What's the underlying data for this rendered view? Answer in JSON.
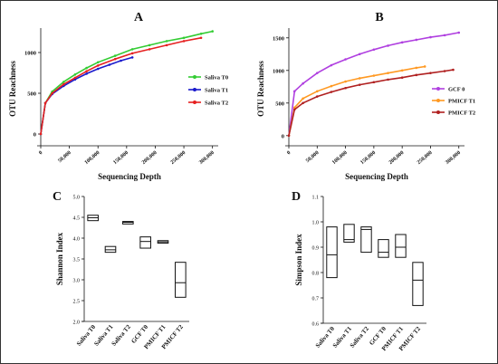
{
  "figure": {
    "panels": [
      "A",
      "B",
      "C",
      "D"
    ]
  },
  "chart_data": [
    {
      "panel": "A",
      "type": "line",
      "xlabel": "Sequencing Depth",
      "ylabel": "OTU Reachness",
      "xlim": [
        0,
        310000
      ],
      "ylim": [
        -100,
        1300
      ],
      "xticks": [
        0,
        50000,
        100000,
        150000,
        200000,
        250000,
        300000
      ],
      "xtick_labels": [
        "0",
        "50,000",
        "100,000",
        "150,000",
        "200,000",
        "250,000",
        "300,000"
      ],
      "yticks": [
        0,
        500,
        1000
      ],
      "ytick_labels": [
        "0",
        "500",
        "1000"
      ],
      "legend_position": "right",
      "series": [
        {
          "name": "Saliva T0",
          "color": "#33cc33",
          "x": [
            0,
            8000,
            20000,
            40000,
            60000,
            80000,
            100000,
            130000,
            160000,
            190000,
            220000,
            250000,
            280000,
            300000
          ],
          "y": [
            0,
            380,
            520,
            640,
            730,
            810,
            880,
            960,
            1040,
            1090,
            1140,
            1180,
            1230,
            1260
          ]
        },
        {
          "name": "Saliva T1",
          "color": "#1a1acc",
          "x": [
            0,
            8000,
            20000,
            40000,
            60000,
            80000,
            100000,
            120000,
            140000,
            160000
          ],
          "y": [
            0,
            380,
            490,
            590,
            670,
            740,
            800,
            850,
            900,
            940
          ]
        },
        {
          "name": "Saliva T2",
          "color": "#e62020",
          "x": [
            0,
            8000,
            20000,
            40000,
            60000,
            80000,
            100000,
            130000,
            160000,
            190000,
            220000,
            250000,
            280000
          ],
          "y": [
            0,
            380,
            500,
            610,
            690,
            770,
            840,
            920,
            990,
            1040,
            1090,
            1140,
            1180
          ]
        }
      ]
    },
    {
      "panel": "B",
      "type": "line",
      "xlabel": "Sequencing Depth",
      "ylabel": "OTU Reachness",
      "xlim": [
        0,
        310000
      ],
      "ylim": [
        -100,
        1650
      ],
      "xticks": [
        0,
        50000,
        100000,
        150000,
        200000,
        250000,
        300000
      ],
      "xtick_labels": [
        "0",
        "50,000",
        "100,000",
        "150,000",
        "200,000",
        "250,000",
        "300,000"
      ],
      "yticks": [
        0,
        500,
        1000,
        1500
      ],
      "ytick_labels": [
        "0",
        "500",
        "1000",
        "1500"
      ],
      "legend_position": "right",
      "series": [
        {
          "name": "GCF 0",
          "color": "#b040e0",
          "x": [
            0,
            10000,
            25000,
            50000,
            75000,
            100000,
            125000,
            150000,
            175000,
            200000,
            225000,
            250000,
            275000,
            300000
          ],
          "y": [
            0,
            680,
            800,
            960,
            1080,
            1170,
            1250,
            1320,
            1380,
            1430,
            1470,
            1510,
            1540,
            1580
          ]
        },
        {
          "name": "PMICF T1",
          "color": "#ff9922",
          "x": [
            0,
            10000,
            25000,
            50000,
            75000,
            100000,
            125000,
            150000,
            175000,
            200000,
            225000,
            240000
          ],
          "y": [
            0,
            430,
            570,
            680,
            760,
            830,
            880,
            920,
            960,
            1000,
            1040,
            1060
          ]
        },
        {
          "name": "PMICF T2",
          "color": "#b02020",
          "x": [
            0,
            10000,
            25000,
            50000,
            75000,
            100000,
            125000,
            150000,
            175000,
            200000,
            225000,
            250000,
            275000,
            290000
          ],
          "y": [
            0,
            400,
            500,
            600,
            670,
            730,
            780,
            820,
            860,
            890,
            930,
            960,
            990,
            1010
          ]
        }
      ]
    },
    {
      "panel": "C",
      "type": "box",
      "ylabel": "Shannon Index",
      "ylim": [
        2.0,
        5.0
      ],
      "yticks": [
        2.0,
        2.5,
        3.0,
        3.5,
        4.0,
        4.5,
        5.0
      ],
      "ytick_labels": [
        "2.0",
        "2.5",
        "3.0",
        "3.5",
        "4.0",
        "4.5",
        "5.0"
      ],
      "categories": [
        "Saliva T0",
        "Saliva T1",
        "Saliva T2",
        "GCF T0",
        "PMICF T1",
        "PMICF T2"
      ],
      "boxes": [
        {
          "min": 4.42,
          "q1": 4.42,
          "median": 4.49,
          "q3": 4.55,
          "max": 4.55
        },
        {
          "min": 3.66,
          "q1": 3.66,
          "median": 3.72,
          "q3": 3.8,
          "max": 3.8
        },
        {
          "min": 4.34,
          "q1": 4.34,
          "median": 4.38,
          "q3": 4.4,
          "max": 4.4
        },
        {
          "min": 3.76,
          "q1": 3.76,
          "median": 3.92,
          "q3": 4.03,
          "max": 4.03
        },
        {
          "min": 3.88,
          "q1": 3.88,
          "median": 3.91,
          "q3": 3.94,
          "max": 3.94
        },
        {
          "min": 2.58,
          "q1": 2.58,
          "median": 2.93,
          "q3": 3.42,
          "max": 3.42
        }
      ]
    },
    {
      "panel": "D",
      "type": "box",
      "ylabel": "Simpson Index",
      "ylim": [
        0.6,
        1.1
      ],
      "yticks": [
        0.6,
        0.7,
        0.8,
        0.9,
        1.0,
        1.1
      ],
      "ytick_labels": [
        "0.6",
        "0.7",
        "0.8",
        "0.9",
        "1.0",
        "1.1"
      ],
      "categories": [
        "Saliva T0",
        "Saliva T1",
        "Saliva T2",
        "GCF T0",
        "PMICF T1",
        "PMICF T2"
      ],
      "boxes": [
        {
          "min": 0.78,
          "q1": 0.78,
          "median": 0.87,
          "q3": 0.98,
          "max": 0.98
        },
        {
          "min": 0.92,
          "q1": 0.92,
          "median": 0.93,
          "q3": 0.99,
          "max": 0.99
        },
        {
          "min": 0.88,
          "q1": 0.88,
          "median": 0.97,
          "q3": 0.98,
          "max": 0.98
        },
        {
          "min": 0.86,
          "q1": 0.86,
          "median": 0.88,
          "q3": 0.93,
          "max": 0.93
        },
        {
          "min": 0.86,
          "q1": 0.86,
          "median": 0.9,
          "q3": 0.95,
          "max": 0.95
        },
        {
          "min": 0.67,
          "q1": 0.67,
          "median": 0.77,
          "q3": 0.84,
          "max": 0.84
        }
      ]
    }
  ]
}
